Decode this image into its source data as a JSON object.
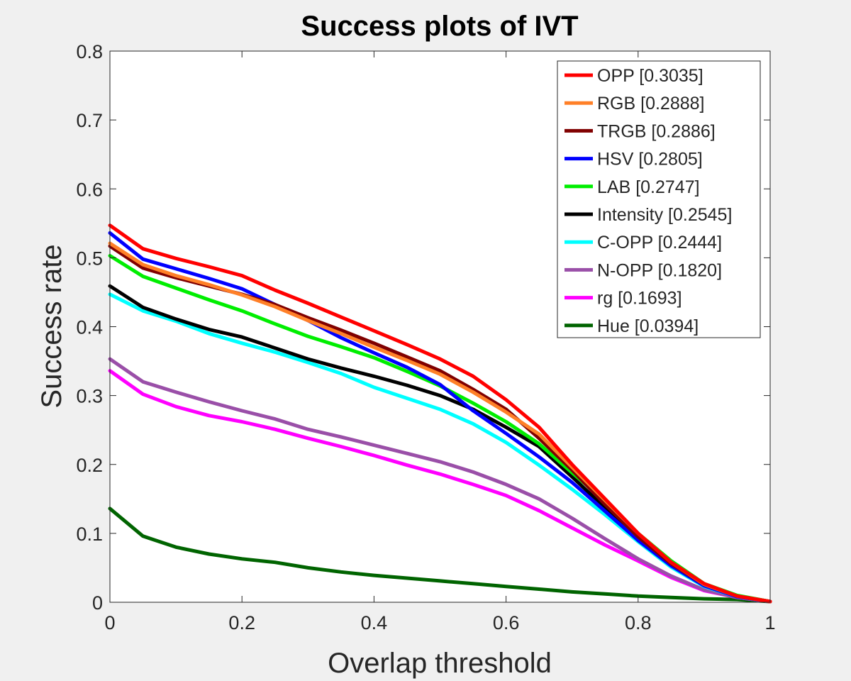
{
  "chart_data": {
    "type": "line",
    "title": "Success plots of IVT",
    "xlabel": "Overlap threshold",
    "ylabel": "Success rate",
    "xlim": [
      0,
      1
    ],
    "ylim": [
      0,
      0.8
    ],
    "xticks": [
      "0",
      "0.2",
      "0.4",
      "0.6",
      "0.8",
      "1"
    ],
    "yticks": [
      "0",
      "0.1",
      "0.2",
      "0.3",
      "0.4",
      "0.5",
      "0.6",
      "0.7",
      "0.8"
    ],
    "grid": false,
    "legend_position": "top-right",
    "x": [
      0,
      0.05,
      0.1,
      0.15,
      0.2,
      0.25,
      0.3,
      0.35,
      0.4,
      0.45,
      0.5,
      0.55,
      0.6,
      0.65,
      0.7,
      0.75,
      0.8,
      0.85,
      0.9,
      0.95,
      1
    ],
    "series": [
      {
        "name": "OPP [0.3035]",
        "color": "#ff0000",
        "values": [
          0.547,
          0.513,
          0.499,
          0.487,
          0.474,
          0.453,
          0.434,
          0.414,
          0.394,
          0.374,
          0.353,
          0.328,
          0.294,
          0.254,
          0.2,
          0.15,
          0.1,
          0.058,
          0.027,
          0.009,
          0.001
        ]
      },
      {
        "name": "RGB [0.2888]",
        "color": "#ff8028",
        "values": [
          0.521,
          0.49,
          0.474,
          0.461,
          0.446,
          0.429,
          0.409,
          0.39,
          0.37,
          0.351,
          0.331,
          0.305,
          0.276,
          0.244,
          0.196,
          0.148,
          0.1,
          0.058,
          0.026,
          0.009,
          0.001
        ]
      },
      {
        "name": "TRGB [0.2886]",
        "color": "#800000",
        "values": [
          0.517,
          0.485,
          0.471,
          0.459,
          0.447,
          0.432,
          0.413,
          0.395,
          0.376,
          0.356,
          0.336,
          0.309,
          0.28,
          0.238,
          0.192,
          0.142,
          0.095,
          0.056,
          0.026,
          0.009,
          0.001
        ]
      },
      {
        "name": "HSV [0.2805]",
        "color": "#0000ff",
        "values": [
          0.536,
          0.498,
          0.484,
          0.47,
          0.455,
          0.432,
          0.409,
          0.384,
          0.362,
          0.341,
          0.316,
          0.278,
          0.245,
          0.211,
          0.174,
          0.132,
          0.09,
          0.053,
          0.024,
          0.008,
          0.001
        ]
      },
      {
        "name": "LAB [0.2747]",
        "color": "#00ee00",
        "values": [
          0.503,
          0.473,
          0.456,
          0.439,
          0.423,
          0.404,
          0.386,
          0.371,
          0.355,
          0.335,
          0.314,
          0.289,
          0.262,
          0.23,
          0.188,
          0.147,
          0.1,
          0.06,
          0.027,
          0.01,
          0.001
        ]
      },
      {
        "name": "Intensity [0.2545]",
        "color": "#000000",
        "values": [
          0.459,
          0.428,
          0.411,
          0.396,
          0.385,
          0.369,
          0.353,
          0.34,
          0.328,
          0.315,
          0.3,
          0.28,
          0.254,
          0.226,
          0.182,
          0.137,
          0.09,
          0.054,
          0.025,
          0.009,
          0.001
        ]
      },
      {
        "name": "C-OPP [0.2444]",
        "color": "#00ffff",
        "values": [
          0.447,
          0.423,
          0.408,
          0.39,
          0.376,
          0.363,
          0.348,
          0.332,
          0.312,
          0.296,
          0.28,
          0.259,
          0.232,
          0.199,
          0.164,
          0.127,
          0.088,
          0.051,
          0.023,
          0.008,
          0.001
        ]
      },
      {
        "name": "N-OPP [0.1820]",
        "color": "#9a4fa8",
        "values": [
          0.353,
          0.32,
          0.305,
          0.291,
          0.278,
          0.266,
          0.251,
          0.24,
          0.228,
          0.216,
          0.204,
          0.189,
          0.171,
          0.15,
          0.122,
          0.092,
          0.063,
          0.038,
          0.018,
          0.007,
          0.001
        ]
      },
      {
        "name": "rg [0.1693]",
        "color": "#ff00ff",
        "values": [
          0.336,
          0.302,
          0.284,
          0.271,
          0.262,
          0.251,
          0.238,
          0.226,
          0.213,
          0.199,
          0.186,
          0.171,
          0.155,
          0.133,
          0.108,
          0.083,
          0.06,
          0.036,
          0.017,
          0.007,
          0.001
        ]
      },
      {
        "name": "Hue [0.0394]",
        "color": "#006400",
        "values": [
          0.136,
          0.096,
          0.08,
          0.07,
          0.063,
          0.058,
          0.05,
          0.044,
          0.039,
          0.035,
          0.031,
          0.027,
          0.023,
          0.019,
          0.015,
          0.012,
          0.009,
          0.007,
          0.005,
          0.004,
          0.001
        ]
      }
    ]
  }
}
